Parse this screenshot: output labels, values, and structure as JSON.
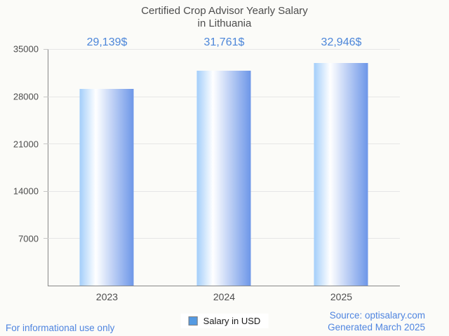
{
  "page": {
    "background": "#fbfbf8"
  },
  "title": {
    "line1": "Certified Crop Advisor Yearly Salary",
    "line2": "in Lithuania"
  },
  "chart_data": {
    "type": "bar",
    "title": "Certified Crop Advisor Yearly Salary in Lithuania",
    "categories": [
      "2023",
      "2024",
      "2025"
    ],
    "series": [
      {
        "name": "Salary in USD",
        "values": [
          29139,
          31761,
          32946
        ]
      }
    ],
    "value_labels": [
      "29,139$",
      "31,761$",
      "32,946$"
    ],
    "xlabel": "",
    "ylabel": "",
    "ylim": [
      0,
      35000
    ],
    "yticks": [
      35000,
      28000,
      21000,
      14000,
      7000
    ],
    "ytick_labels": [
      "35000",
      "28000",
      "21000",
      "14000",
      "7000"
    ],
    "grid": true,
    "legend_position": "bottom-center",
    "bar_gradient": [
      "#a3cefa",
      "#ffffff",
      "#6d96e8"
    ]
  },
  "legend": {
    "label": "Salary in USD",
    "swatch_color": "#559ae2",
    "swatch_border": "#7d7d7d"
  },
  "footer": {
    "disclaimer": "For informational use only",
    "source": "Source: optisalary.com",
    "generated": "Generated March 2025"
  },
  "colors": {
    "value_label": "#4c86d9",
    "footer_text": "#4f85e0",
    "axis_line": "#888888",
    "gridline": "#e6e6e6",
    "text": "#4d4d4d"
  }
}
